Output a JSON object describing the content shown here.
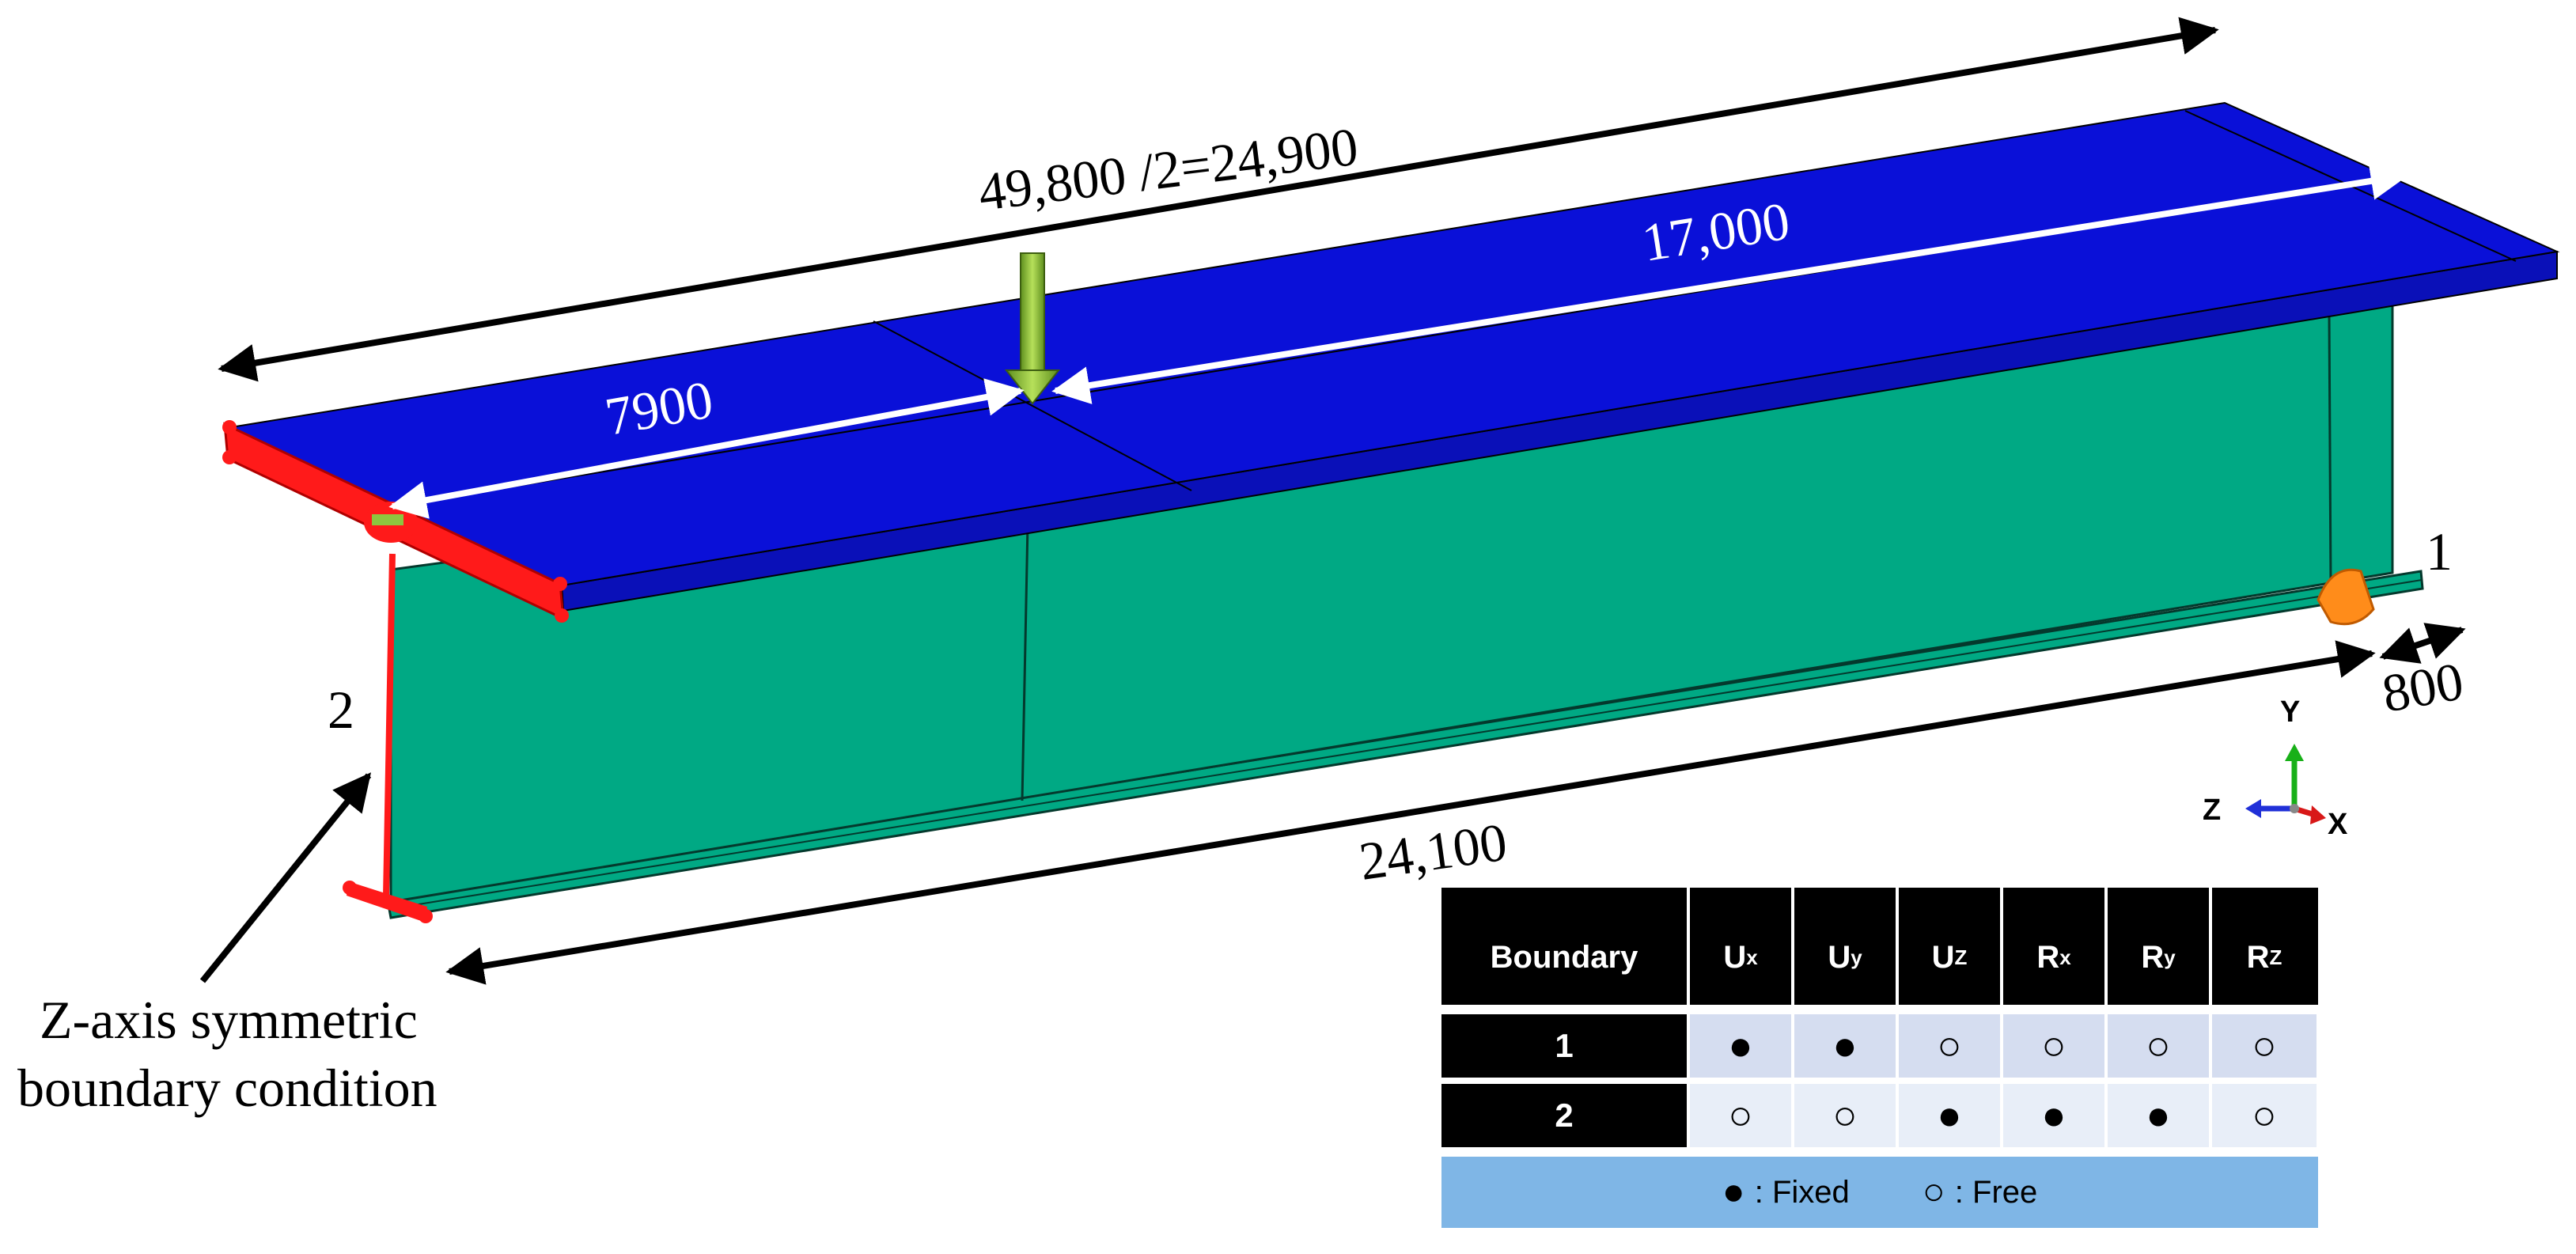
{
  "dimensions": {
    "total_length": "49,800 /2=24,900",
    "span_to_load": "7900",
    "span_from_load": "17,000",
    "bottom_length": "24,100",
    "end_width": "800"
  },
  "boundary_labels": {
    "end_1": "1",
    "end_2": "2"
  },
  "annotation": {
    "line1": "Z-axis symmetric",
    "line2": "boundary condition"
  },
  "axes": {
    "y": "Y",
    "z": "Z",
    "x": "X"
  },
  "colors": {
    "flange": "#0a10d8",
    "web": "#00a984",
    "boundary": "#ff1a1a",
    "load_arrow": "#8dc63f",
    "support": "#ff8c1a",
    "dim_black": "#000000",
    "dim_white": "#ffffff"
  },
  "table": {
    "header": [
      "Boundary",
      "U",
      "U",
      "U",
      "R",
      "R",
      "R"
    ],
    "header_sub": [
      "",
      "x",
      "y",
      "Z",
      "x",
      "y",
      "Z"
    ],
    "rows": [
      {
        "boundary": "1",
        "values": [
          "●",
          "●",
          "○",
          "○",
          "○",
          "○"
        ]
      },
      {
        "boundary": "2",
        "values": [
          "○",
          "○",
          "●",
          "●",
          "●",
          "○"
        ]
      }
    ],
    "legend": {
      "fixed_symbol": "●",
      "fixed_label": ": Fixed",
      "free_symbol": "○",
      "free_label": ": Free"
    }
  }
}
